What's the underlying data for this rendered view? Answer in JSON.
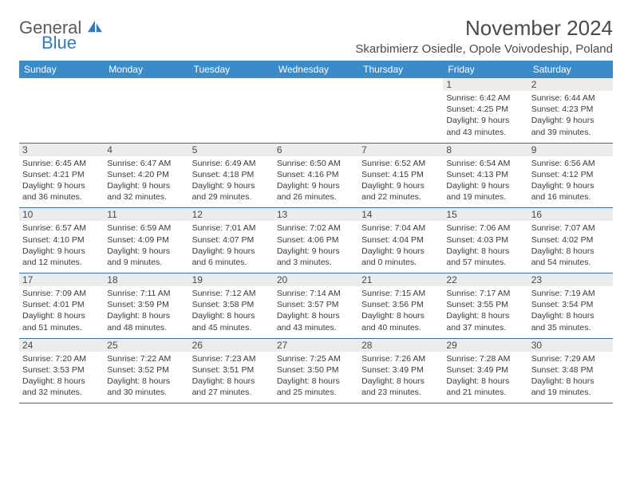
{
  "brand": {
    "name1": "General",
    "name2": "Blue",
    "icon_color": "#2f7bbf"
  },
  "header": {
    "month_title": "November 2024",
    "location": "Skarbimierz Osiedle, Opole Voivodeship, Poland"
  },
  "colors": {
    "header_bg": "#3b8bc9",
    "header_text": "#ffffff",
    "row_border": "#3b6fa0",
    "daynum_bg": "#ececec",
    "text": "#4a4a4a"
  },
  "weekdays": [
    "Sunday",
    "Monday",
    "Tuesday",
    "Wednesday",
    "Thursday",
    "Friday",
    "Saturday"
  ],
  "weeks": [
    [
      null,
      null,
      null,
      null,
      null,
      {
        "n": "1",
        "sunrise": "6:42 AM",
        "sunset": "4:25 PM",
        "daylight": "9 hours and 43 minutes."
      },
      {
        "n": "2",
        "sunrise": "6:44 AM",
        "sunset": "4:23 PM",
        "daylight": "9 hours and 39 minutes."
      }
    ],
    [
      {
        "n": "3",
        "sunrise": "6:45 AM",
        "sunset": "4:21 PM",
        "daylight": "9 hours and 36 minutes."
      },
      {
        "n": "4",
        "sunrise": "6:47 AM",
        "sunset": "4:20 PM",
        "daylight": "9 hours and 32 minutes."
      },
      {
        "n": "5",
        "sunrise": "6:49 AM",
        "sunset": "4:18 PM",
        "daylight": "9 hours and 29 minutes."
      },
      {
        "n": "6",
        "sunrise": "6:50 AM",
        "sunset": "4:16 PM",
        "daylight": "9 hours and 26 minutes."
      },
      {
        "n": "7",
        "sunrise": "6:52 AM",
        "sunset": "4:15 PM",
        "daylight": "9 hours and 22 minutes."
      },
      {
        "n": "8",
        "sunrise": "6:54 AM",
        "sunset": "4:13 PM",
        "daylight": "9 hours and 19 minutes."
      },
      {
        "n": "9",
        "sunrise": "6:56 AM",
        "sunset": "4:12 PM",
        "daylight": "9 hours and 16 minutes."
      }
    ],
    [
      {
        "n": "10",
        "sunrise": "6:57 AM",
        "sunset": "4:10 PM",
        "daylight": "9 hours and 12 minutes."
      },
      {
        "n": "11",
        "sunrise": "6:59 AM",
        "sunset": "4:09 PM",
        "daylight": "9 hours and 9 minutes."
      },
      {
        "n": "12",
        "sunrise": "7:01 AM",
        "sunset": "4:07 PM",
        "daylight": "9 hours and 6 minutes."
      },
      {
        "n": "13",
        "sunrise": "7:02 AM",
        "sunset": "4:06 PM",
        "daylight": "9 hours and 3 minutes."
      },
      {
        "n": "14",
        "sunrise": "7:04 AM",
        "sunset": "4:04 PM",
        "daylight": "9 hours and 0 minutes."
      },
      {
        "n": "15",
        "sunrise": "7:06 AM",
        "sunset": "4:03 PM",
        "daylight": "8 hours and 57 minutes."
      },
      {
        "n": "16",
        "sunrise": "7:07 AM",
        "sunset": "4:02 PM",
        "daylight": "8 hours and 54 minutes."
      }
    ],
    [
      {
        "n": "17",
        "sunrise": "7:09 AM",
        "sunset": "4:01 PM",
        "daylight": "8 hours and 51 minutes."
      },
      {
        "n": "18",
        "sunrise": "7:11 AM",
        "sunset": "3:59 PM",
        "daylight": "8 hours and 48 minutes."
      },
      {
        "n": "19",
        "sunrise": "7:12 AM",
        "sunset": "3:58 PM",
        "daylight": "8 hours and 45 minutes."
      },
      {
        "n": "20",
        "sunrise": "7:14 AM",
        "sunset": "3:57 PM",
        "daylight": "8 hours and 43 minutes."
      },
      {
        "n": "21",
        "sunrise": "7:15 AM",
        "sunset": "3:56 PM",
        "daylight": "8 hours and 40 minutes."
      },
      {
        "n": "22",
        "sunrise": "7:17 AM",
        "sunset": "3:55 PM",
        "daylight": "8 hours and 37 minutes."
      },
      {
        "n": "23",
        "sunrise": "7:19 AM",
        "sunset": "3:54 PM",
        "daylight": "8 hours and 35 minutes."
      }
    ],
    [
      {
        "n": "24",
        "sunrise": "7:20 AM",
        "sunset": "3:53 PM",
        "daylight": "8 hours and 32 minutes."
      },
      {
        "n": "25",
        "sunrise": "7:22 AM",
        "sunset": "3:52 PM",
        "daylight": "8 hours and 30 minutes."
      },
      {
        "n": "26",
        "sunrise": "7:23 AM",
        "sunset": "3:51 PM",
        "daylight": "8 hours and 27 minutes."
      },
      {
        "n": "27",
        "sunrise": "7:25 AM",
        "sunset": "3:50 PM",
        "daylight": "8 hours and 25 minutes."
      },
      {
        "n": "28",
        "sunrise": "7:26 AM",
        "sunset": "3:49 PM",
        "daylight": "8 hours and 23 minutes."
      },
      {
        "n": "29",
        "sunrise": "7:28 AM",
        "sunset": "3:49 PM",
        "daylight": "8 hours and 21 minutes."
      },
      {
        "n": "30",
        "sunrise": "7:29 AM",
        "sunset": "3:48 PM",
        "daylight": "8 hours and 19 minutes."
      }
    ]
  ]
}
